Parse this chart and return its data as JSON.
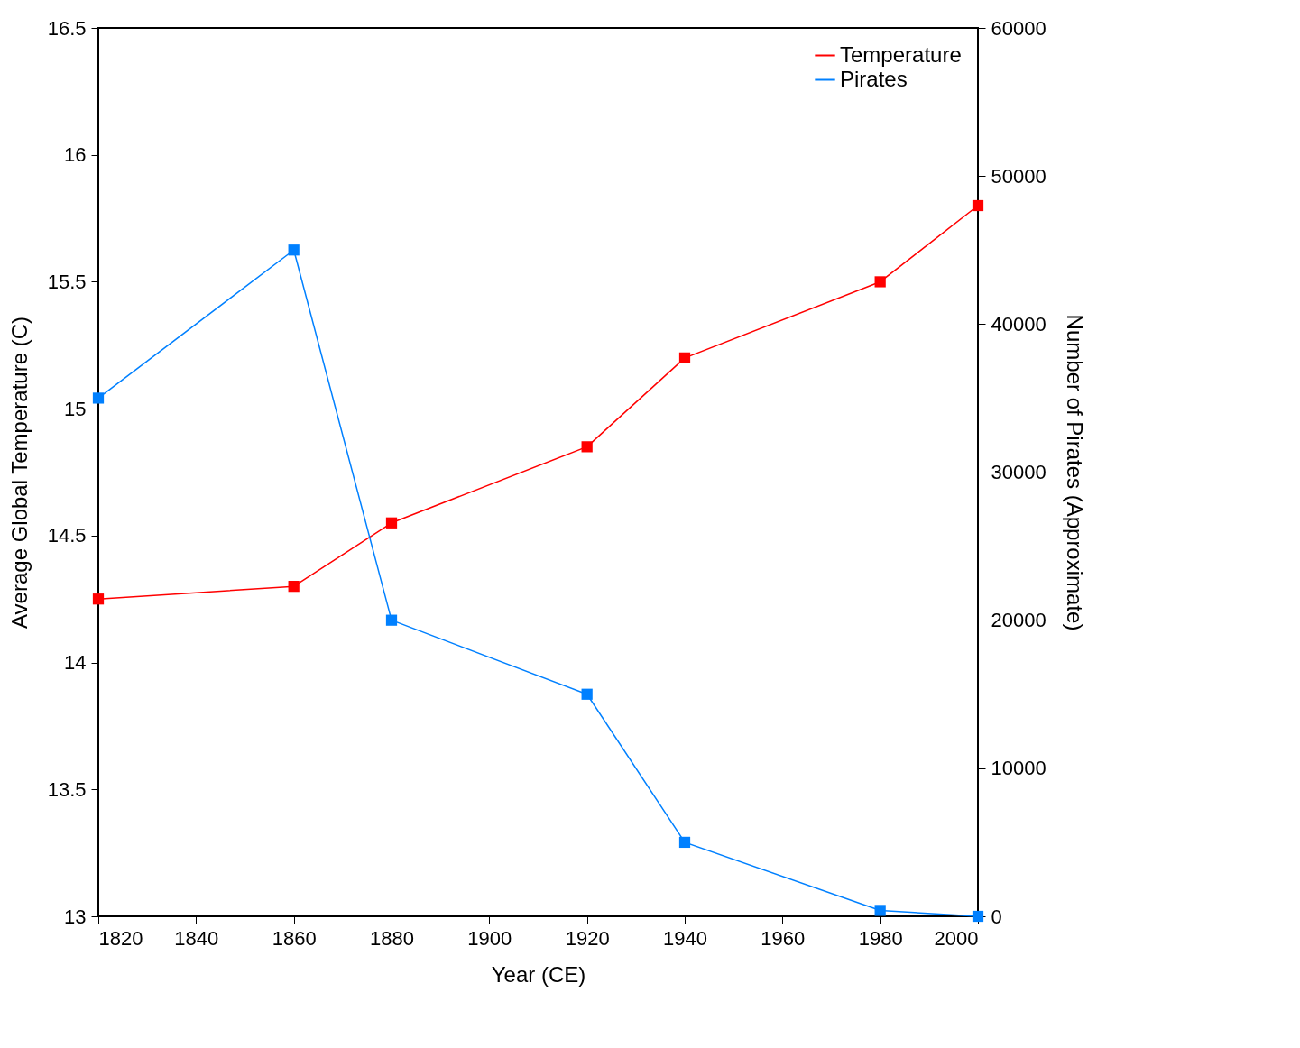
{
  "chart_data": {
    "type": "line",
    "xlabel": "Year (CE)",
    "ylabel": "Average Global Temperature (C)",
    "y2label": "Number of Pirates (Approximate)",
    "xlim": [
      1820,
      2000
    ],
    "xticks": [
      1820,
      1840,
      1860,
      1880,
      1900,
      1920,
      1940,
      1960,
      1980,
      2000
    ],
    "ylim": [
      13,
      16.5
    ],
    "yticks": [
      13,
      13.5,
      14,
      14.5,
      15,
      15.5,
      16,
      16.5
    ],
    "y2lim": [
      0,
      60000
    ],
    "y2ticks": [
      0,
      10000,
      20000,
      30000,
      40000,
      50000,
      60000
    ],
    "x": [
      1820,
      1860,
      1880,
      1920,
      1940,
      1980,
      2000
    ],
    "series": [
      {
        "name": "Temperature",
        "color": "#ff0000",
        "values": [
          14.25,
          14.3,
          14.55,
          14.85,
          15.2,
          15.5,
          15.8
        ]
      },
      {
        "name": "Pirates",
        "color": "#0080ff",
        "axis": "y2",
        "values": [
          35000,
          45000,
          20000,
          15000,
          5000,
          400,
          0
        ]
      }
    ],
    "marker": "square",
    "line_style": "solid",
    "grid": false,
    "legend": "top right"
  }
}
